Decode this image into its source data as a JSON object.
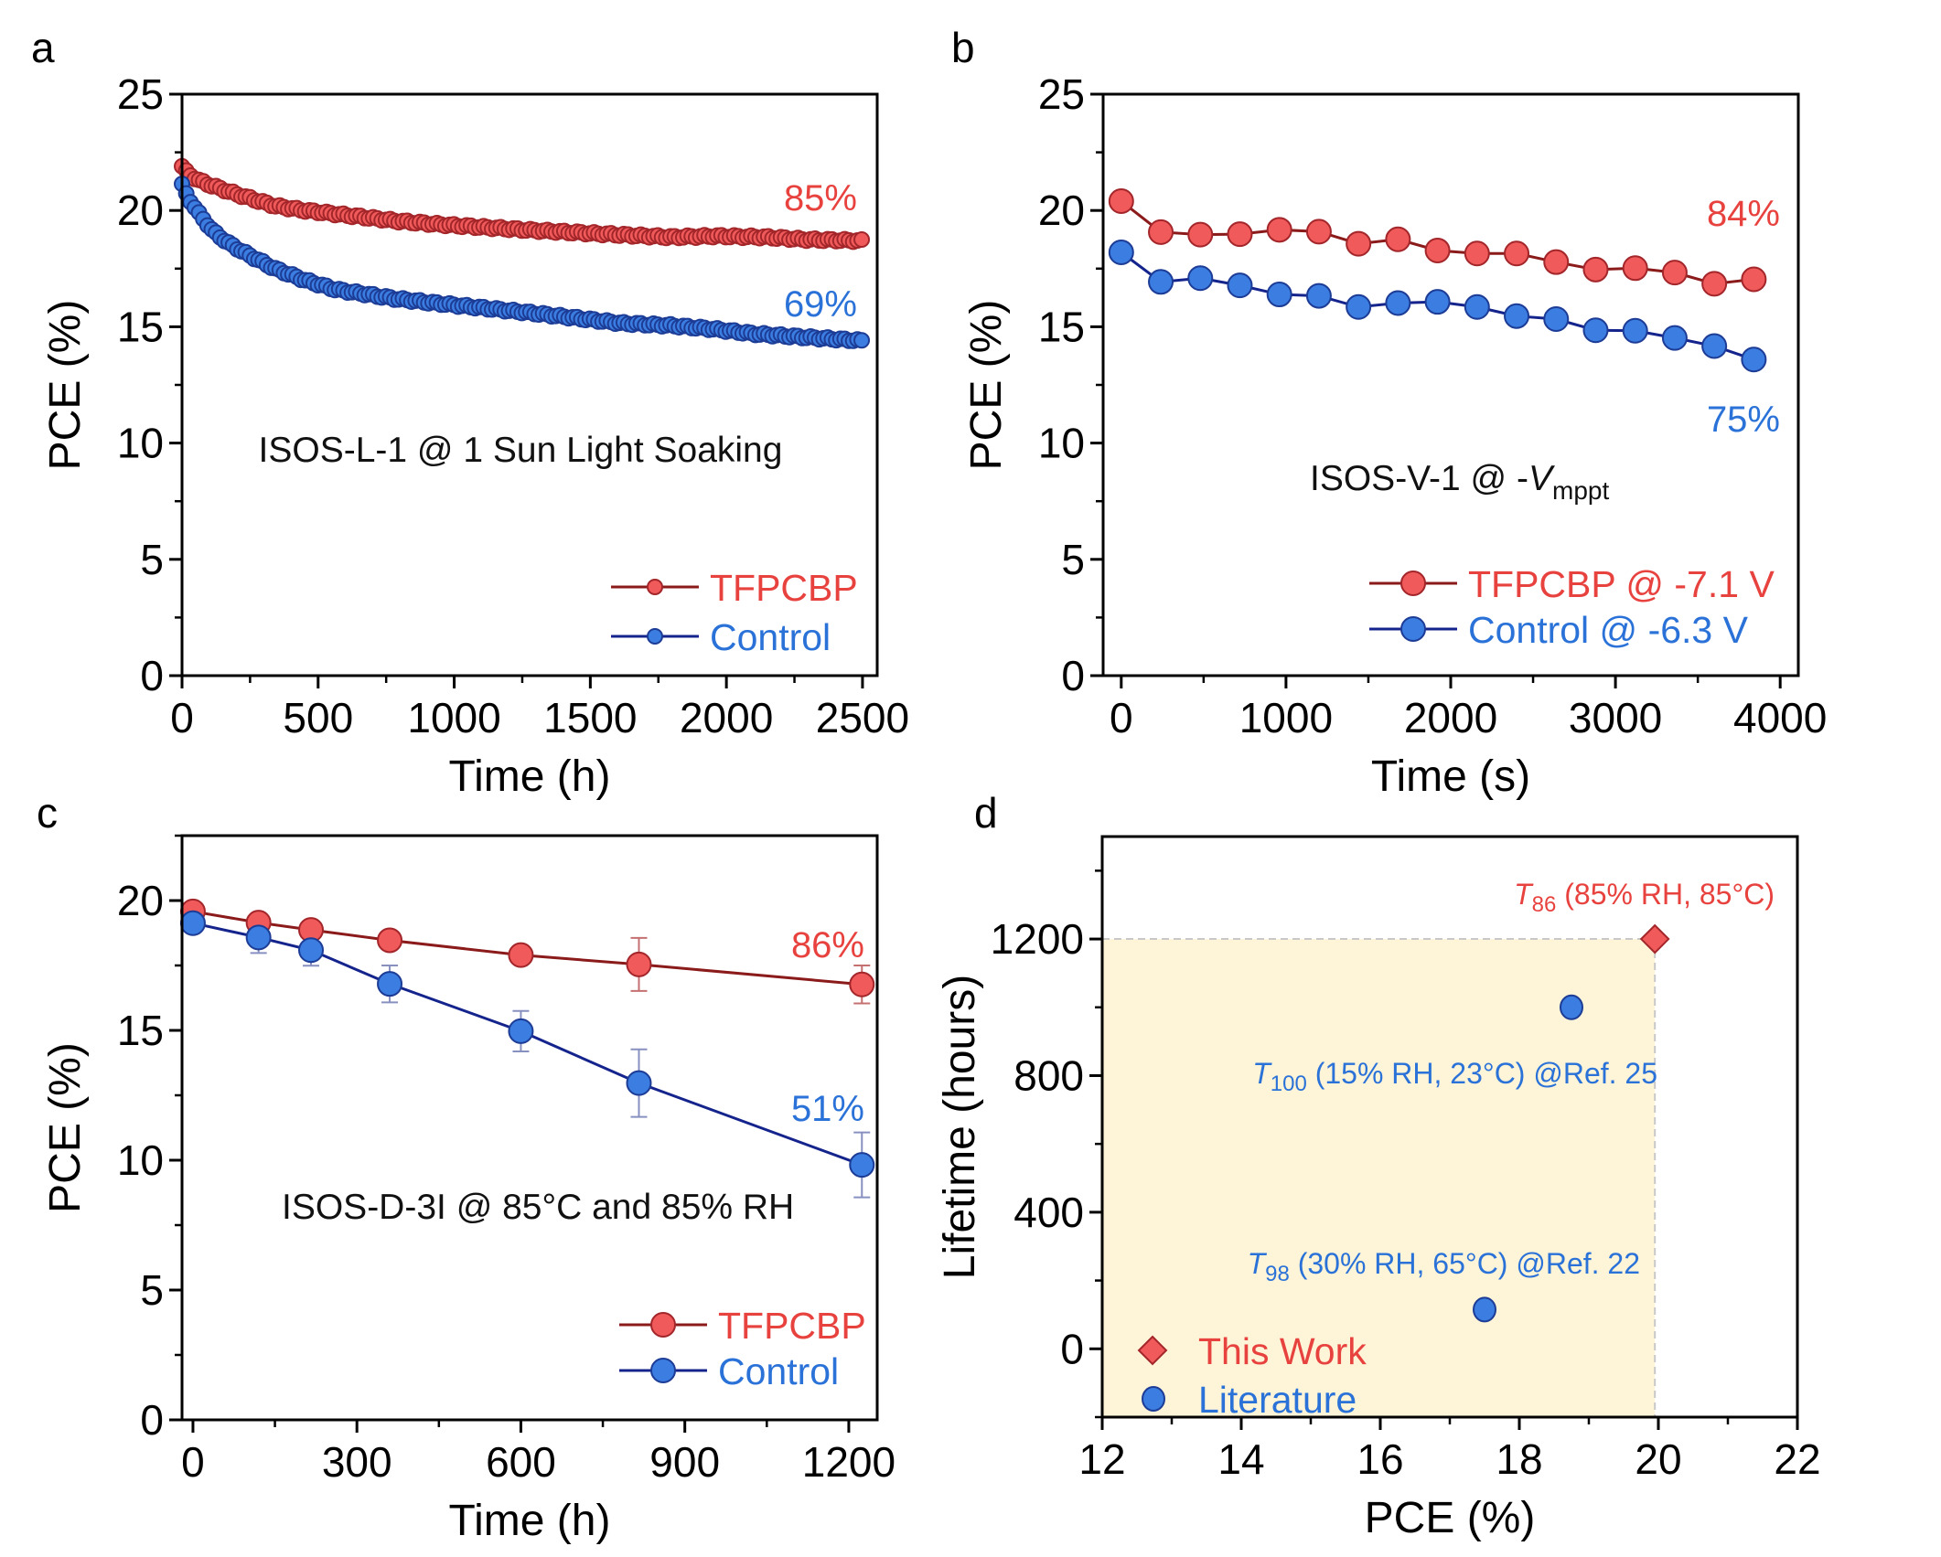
{
  "colors": {
    "red_fill": "#F05A5A",
    "red_stroke": "#A3262A",
    "red_line": "#8B1A1A",
    "red_text": "#E8423F",
    "blue_fill": "#3B7DE0",
    "blue_stroke": "#1C3C96",
    "blue_line": "#14248C",
    "blue_text": "#2A72D8",
    "shade": "#FEF4D8",
    "dash": "#C8C8C8",
    "errbar_red": "#C47070",
    "errbar_blue": "#8890C0"
  },
  "chart_data": [
    {
      "panel": "a",
      "type": "scatter",
      "title": "",
      "xlabel": "Time (h)",
      "ylabel": "PCE (%)",
      "xlim": [
        0,
        2554
      ],
      "ylim": [
        0,
        25
      ],
      "xticks": [
        0,
        500,
        1000,
        1500,
        2000,
        2500
      ],
      "yticks": [
        0,
        5,
        10,
        15,
        20,
        25
      ],
      "annotation": "ISOS-L-1 @ 1 Sun Light Soaking",
      "legend_position": "bottom-right",
      "series": [
        {
          "name": "TFPCBP",
          "color": "red",
          "end_label": "85%",
          "x": [
            0,
            20,
            60,
            114,
            200,
            340,
            450,
            564,
            787,
            944,
            1280,
            1616,
            1800,
            1952,
            2150,
            2288,
            2497
          ],
          "y": [
            21.9,
            21.6,
            21.3,
            21.05,
            20.7,
            20.2,
            20.0,
            19.85,
            19.55,
            19.4,
            19.15,
            18.95,
            18.85,
            18.9,
            18.85,
            18.75,
            18.7
          ]
        },
        {
          "name": "Control",
          "color": "blue",
          "end_label": "69%",
          "x": [
            0,
            20,
            60,
            114,
            170,
            227,
            340,
            452,
            564,
            787,
            944,
            1280,
            1616,
            1800,
            1952,
            2100,
            2288,
            2497
          ],
          "y": [
            21.1,
            20.6,
            19.9,
            19.1,
            18.6,
            18.2,
            17.5,
            17.0,
            16.6,
            16.2,
            16.0,
            15.6,
            15.15,
            15.05,
            14.9,
            14.7,
            14.55,
            14.4
          ]
        }
      ]
    },
    {
      "panel": "b",
      "type": "line",
      "title": "",
      "xlabel": "Time (s)",
      "ylabel": "PCE (%)",
      "xlim": [
        -110,
        4110
      ],
      "ylim": [
        0,
        25
      ],
      "xticks": [
        0,
        1000,
        2000,
        3000,
        4000
      ],
      "yticks": [
        0,
        5,
        10,
        15,
        20,
        25
      ],
      "annotation_main": "ISOS-V-1 @ -",
      "annotation_italic": "V",
      "annotation_sub": "mppt",
      "legend_position": "bottom-right",
      "series": [
        {
          "name": "TFPCBP @ -7.1 V",
          "color": "red",
          "end_label": "84%",
          "x": [
            0,
            240,
            480,
            720,
            960,
            1200,
            1440,
            1680,
            1920,
            2160,
            2400,
            2640,
            2880,
            3120,
            3360,
            3600,
            3840
          ],
          "y": [
            20.4,
            19.07,
            18.96,
            18.98,
            19.17,
            19.09,
            18.57,
            18.76,
            18.28,
            18.15,
            18.15,
            17.78,
            17.46,
            17.52,
            17.33,
            16.85,
            17.04
          ]
        },
        {
          "name": "Control @ -6.3 V",
          "color": "blue",
          "end_label": "75%",
          "x": [
            0,
            240,
            480,
            720,
            960,
            1200,
            1440,
            1680,
            1920,
            2160,
            2400,
            2640,
            2880,
            3120,
            3360,
            3600,
            3840
          ],
          "y": [
            18.2,
            16.93,
            17.09,
            16.78,
            16.39,
            16.33,
            15.85,
            16.02,
            16.07,
            15.85,
            15.46,
            15.33,
            14.85,
            14.83,
            14.52,
            14.17,
            13.59
          ]
        }
      ]
    },
    {
      "panel": "c",
      "type": "line",
      "title": "",
      "xlabel": "Time (h)",
      "ylabel": "PCE (%)",
      "xlim": [
        -20,
        1252
      ],
      "ylim": [
        0,
        22.5
      ],
      "xticks": [
        0,
        300,
        600,
        900,
        1200
      ],
      "yticks": [
        0,
        5,
        10,
        15,
        20
      ],
      "annotation": "ISOS-D-3I @ 85°C and 85% RH",
      "legend_position": "bottom-right",
      "series": [
        {
          "name": "TFPCBP",
          "color": "red",
          "end_label": "86%",
          "x": [
            0,
            120,
            216,
            360,
            600,
            816,
            1224
          ],
          "y": [
            19.58,
            19.15,
            18.87,
            18.47,
            17.9,
            17.54,
            16.77
          ],
          "err": [
            0.3,
            0.3,
            0.3,
            0.2,
            0.3,
            1.02,
            0.73
          ]
        },
        {
          "name": "Control",
          "color": "blue",
          "end_label": "51%",
          "x": [
            0,
            120,
            216,
            360,
            600,
            816,
            1224
          ],
          "y": [
            19.13,
            18.58,
            18.09,
            16.79,
            14.97,
            12.97,
            9.82
          ],
          "err": [
            0.3,
            0.6,
            0.6,
            0.71,
            0.78,
            1.3,
            1.25
          ]
        }
      ]
    },
    {
      "panel": "d",
      "type": "scatter",
      "title": "",
      "xlabel": "PCE (%)",
      "ylabel": "Lifetime (hours)",
      "xlim": [
        12,
        22
      ],
      "ylim": [
        -200,
        1500
      ],
      "xticks": [
        12,
        14,
        16,
        18,
        20,
        22
      ],
      "yticks": [
        0,
        400,
        800,
        1200
      ],
      "shaded_region": {
        "x": [
          12,
          19.95
        ],
        "y": [
          -200,
          1200
        ]
      },
      "legend_position": "bottom-left",
      "series": [
        {
          "name": "This Work",
          "marker": "diamond",
          "color": "red",
          "points": [
            {
              "x": 19.95,
              "y": 1200,
              "label_T": "T",
              "label_sub": "86",
              "label_rest": " (85% RH, 85°C)"
            }
          ]
        },
        {
          "name": "Literature",
          "marker": "circle",
          "color": "blue",
          "points": [
            {
              "x": 18.75,
              "y": 1000,
              "label_T": "T",
              "label_sub": "100",
              "label_rest": " (15% RH, 23°C) @Ref. 25"
            },
            {
              "x": 17.5,
              "y": 115,
              "label_T": "T",
              "label_sub": "98",
              "label_rest": " (30% RH, 65°C) @Ref. 22"
            }
          ]
        }
      ]
    }
  ],
  "panel_letters": [
    "a",
    "b",
    "c",
    "d"
  ]
}
